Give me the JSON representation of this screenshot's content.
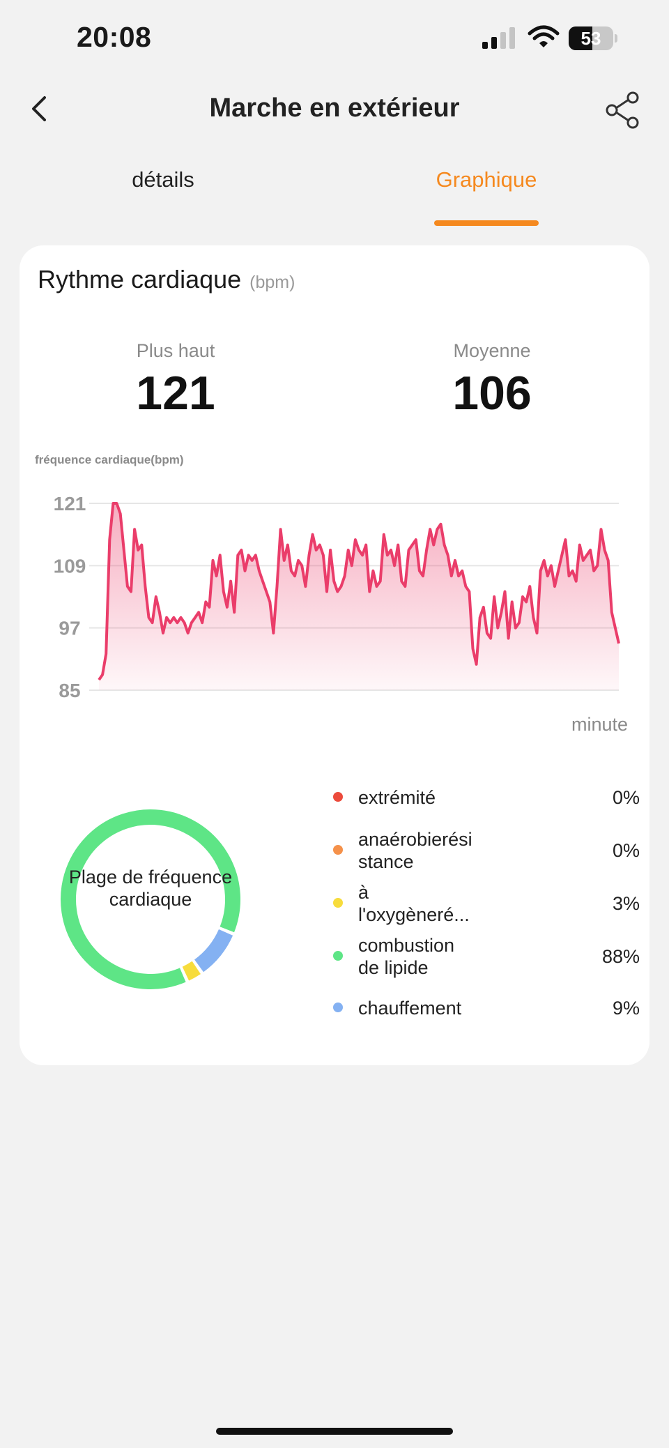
{
  "status_bar": {
    "time": "20:08",
    "battery": "53",
    "battery_level": 0.53
  },
  "nav": {
    "title": "Marche en extérieur"
  },
  "tabs": [
    {
      "label": "détails",
      "active": false
    },
    {
      "label": "Graphique",
      "active": true
    }
  ],
  "card": {
    "title": "Rythme cardiaque",
    "unit": "(bpm)",
    "stats": {
      "max_label": "Plus haut",
      "max_value": "121",
      "avg_label": "Moyenne",
      "avg_value": "106"
    },
    "chart_caption": "fréquence cardiaque(bpm)",
    "x_axis_label": "minute",
    "donut_label": "Plage de fréquence cardiaque",
    "zones": [
      {
        "label": "extrémité",
        "percent": "0%",
        "value": 0,
        "color": "#ec4b3c"
      },
      {
        "label": "anaérobierési stance",
        "percent": "0%",
        "value": 0,
        "color": "#f5914a"
      },
      {
        "label": "à l'oxygèneré...",
        "percent": "3%",
        "value": 3,
        "color": "#f7dc3c"
      },
      {
        "label": "combustion de lipide",
        "percent": "88%",
        "value": 88,
        "color": "#5ee586"
      },
      {
        "label": "chauffement",
        "percent": "9%",
        "value": 9,
        "color": "#84b1f2"
      }
    ]
  },
  "colors": {
    "accent": "#f5891f",
    "line": "#ea3d6a"
  },
  "chart_data": {
    "type": "area",
    "title": "Rythme cardiaque",
    "ylabel": "fréquence cardiaque(bpm)",
    "xlabel": "minute",
    "yticks": [
      85,
      97,
      109,
      121
    ],
    "ylim": [
      85,
      121
    ],
    "grid": true,
    "series": [
      {
        "values": [
          87,
          88,
          92,
          114,
          121,
          121,
          119,
          112,
          105,
          104,
          116,
          112,
          113,
          105,
          99,
          98,
          103,
          100,
          96,
          99,
          98,
          99,
          98,
          99,
          98,
          96,
          98,
          99,
          100,
          98,
          102,
          101,
          110,
          107,
          111,
          104,
          101,
          106,
          100,
          111,
          112,
          108,
          111,
          110,
          111,
          108,
          106,
          104,
          102,
          96,
          105,
          116,
          110,
          113,
          108,
          107,
          110,
          109,
          105,
          111,
          115,
          112,
          113,
          111,
          104,
          112,
          106,
          104,
          105,
          107,
          112,
          109,
          114,
          112,
          111,
          113,
          104,
          108,
          105,
          106,
          115,
          111,
          112,
          109,
          113,
          106,
          105,
          112,
          113,
          114,
          108,
          107,
          112,
          116,
          113,
          116,
          117,
          113,
          111,
          107,
          110,
          107,
          108,
          105,
          104,
          93,
          90,
          99,
          101,
          96,
          95,
          103,
          97,
          100,
          104,
          95,
          102,
          97,
          98,
          103,
          102,
          105,
          99,
          96,
          108,
          110,
          107,
          109,
          105,
          108,
          111,
          114,
          107,
          108,
          106,
          113,
          110,
          111,
          112,
          108,
          109,
          116,
          112,
          110,
          100,
          97,
          94
        ]
      }
    ]
  }
}
